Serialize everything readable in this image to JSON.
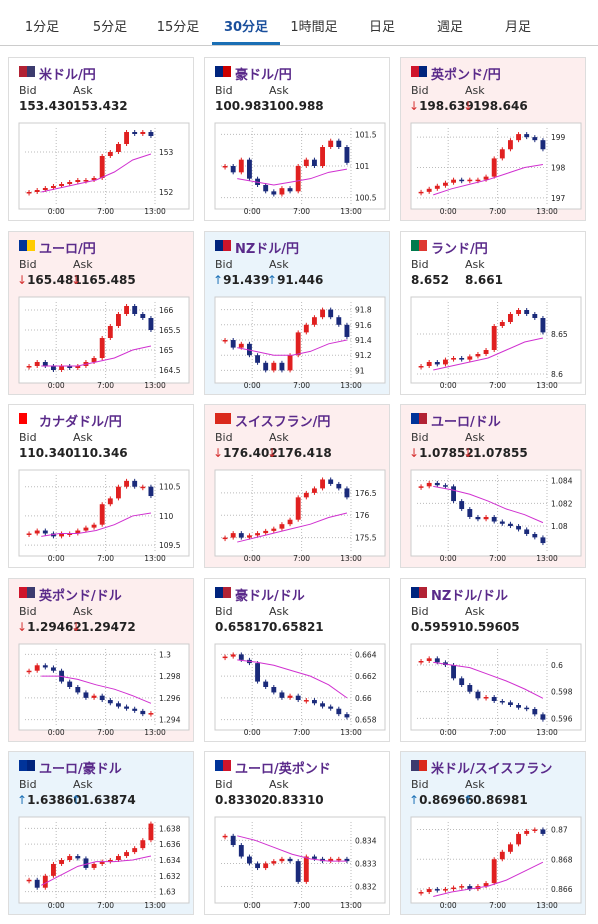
{
  "tabs": {
    "items": [
      "1分足",
      "5分足",
      "15分足",
      "30分足",
      "1時間足",
      "日足",
      "週足",
      "月足"
    ],
    "active": 3
  },
  "labels": {
    "bid": "Bid",
    "ask": "Ask"
  },
  "xticks": [
    "0:00",
    "7:00",
    "13:00"
  ],
  "colors": {
    "up_bg": "#eaf4fb",
    "down_bg": "#fdeeee",
    "up_arrow": "#1a6fb5",
    "down_arrow": "#d63030",
    "up_candle": "#e02020",
    "down_candle": "#1a2a7a",
    "ma": "#d030d0"
  },
  "panels": [
    {
      "name": "米ドル/円",
      "flag": [
        "#b22234",
        "#3c3b6e"
      ],
      "trend": "none",
      "bid": "153.430",
      "ask": "153.432",
      "ylim": [
        151.7,
        153.6
      ],
      "yticks": [
        152,
        153
      ],
      "closes": [
        152.0,
        152.05,
        152.1,
        152.15,
        152.2,
        152.25,
        152.3,
        152.3,
        152.35,
        152.9,
        153.0,
        153.2,
        153.5,
        153.45,
        153.5,
        153.4
      ],
      "ma": [
        152.0,
        152.1,
        152.2,
        152.3,
        152.5,
        152.8,
        152.95
      ]
    },
    {
      "name": "豪ドル/円",
      "flag": [
        "#00247d",
        "#cc0000"
      ],
      "trend": "none",
      "bid": "100.983",
      "ask": "100.988",
      "ylim": [
        100.4,
        101.6
      ],
      "yticks": [
        100.5,
        101,
        101.5
      ],
      "closes": [
        101.0,
        100.9,
        101.1,
        100.8,
        100.7,
        100.6,
        100.55,
        100.65,
        100.6,
        101.0,
        101.1,
        101.0,
        101.3,
        101.4,
        101.3,
        101.05
      ],
      "ma": [
        100.8,
        100.75,
        100.7,
        100.75,
        100.8,
        100.9,
        100.95
      ]
    },
    {
      "name": "英ポンド/円",
      "flag": [
        "#cf142b",
        "#00247d"
      ],
      "trend": "down",
      "arrow": "↓",
      "bid": "198.639",
      "ask": "198.646",
      "ylim": [
        196.8,
        199.3
      ],
      "yticks": [
        197,
        198,
        199
      ],
      "closes": [
        197.2,
        197.3,
        197.4,
        197.5,
        197.6,
        197.55,
        197.6,
        197.6,
        197.7,
        198.3,
        198.6,
        198.9,
        199.1,
        199.0,
        198.9,
        198.6
      ],
      "ma": [
        197.1,
        197.3,
        197.45,
        197.6,
        197.8,
        198.0,
        198.1
      ]
    },
    {
      "name": "ユーロ/円",
      "flag": [
        "#003399",
        "#ffcc00"
      ],
      "trend": "down",
      "arrow": "↓",
      "bid": "165.481",
      "ask": "165.485",
      "ylim": [
        164.3,
        166.2
      ],
      "yticks": [
        164.5,
        165,
        165.5,
        166
      ],
      "closes": [
        164.6,
        164.7,
        164.6,
        164.5,
        164.6,
        164.55,
        164.6,
        164.7,
        164.8,
        165.3,
        165.6,
        165.9,
        166.1,
        165.9,
        165.8,
        165.5
      ],
      "ma": [
        164.6,
        164.6,
        164.6,
        164.7,
        164.8,
        165.0,
        165.1
      ]
    },
    {
      "name": "NZドル/円",
      "flag": [
        "#00247d",
        "#cc142b"
      ],
      "trend": "up",
      "arrow": "↑",
      "bid": "91.439",
      "ask": "91.446",
      "ylim": [
        90.9,
        91.9
      ],
      "yticks": [
        91,
        91.2,
        91.4,
        91.6,
        91.8
      ],
      "closes": [
        91.4,
        91.3,
        91.35,
        91.2,
        91.1,
        91.0,
        91.1,
        91.0,
        91.2,
        91.5,
        91.6,
        91.7,
        91.8,
        91.7,
        91.6,
        91.44
      ],
      "ma": [
        91.3,
        91.25,
        91.2,
        91.2,
        91.25,
        91.35,
        91.4
      ]
    },
    {
      "name": "ランド/円",
      "flag": [
        "#007a4d",
        "#de3831"
      ],
      "trend": "none",
      "bid": "8.652",
      "ask": "8.661",
      "ylim": [
        8.595,
        8.69
      ],
      "yticks": [
        8.6,
        8.65
      ],
      "closes": [
        8.61,
        8.615,
        8.612,
        8.618,
        8.62,
        8.618,
        8.622,
        8.625,
        8.63,
        8.66,
        8.665,
        8.675,
        8.68,
        8.675,
        8.67,
        8.652
      ],
      "ma": [
        8.605,
        8.61,
        8.615,
        8.62,
        8.63,
        8.64,
        8.645
      ]
    },
    {
      "name": "カナダドル/円",
      "flag": [
        "#ff0000",
        "#ffffff"
      ],
      "trend": "none",
      "bid": "110.340",
      "ask": "110.346",
      "ylim": [
        109.4,
        110.7
      ],
      "yticks": [
        109.5,
        110,
        110.5
      ],
      "closes": [
        109.7,
        109.75,
        109.7,
        109.65,
        109.7,
        109.7,
        109.75,
        109.8,
        109.85,
        110.2,
        110.3,
        110.5,
        110.6,
        110.5,
        110.5,
        110.34
      ],
      "ma": [
        109.65,
        109.7,
        109.7,
        109.75,
        109.85,
        110.0,
        110.05
      ]
    },
    {
      "name": "スイスフラン/円",
      "flag": [
        "#da291c",
        "#da291c"
      ],
      "trend": "down",
      "arrow": "↓",
      "bid": "176.402",
      "ask": "176.418",
      "ylim": [
        175.2,
        176.9
      ],
      "yticks": [
        175.5,
        176,
        176.5
      ],
      "closes": [
        175.5,
        175.6,
        175.5,
        175.55,
        175.6,
        175.65,
        175.7,
        175.8,
        175.9,
        176.4,
        176.5,
        176.6,
        176.8,
        176.7,
        176.6,
        176.4
      ],
      "ma": [
        175.4,
        175.5,
        175.6,
        175.7,
        175.8,
        175.95,
        176.05
      ]
    },
    {
      "name": "ユーロ/ドル",
      "flag": [
        "#003399",
        "#b22234"
      ],
      "trend": "down",
      "arrow": "↓",
      "bid": "1.07852",
      "ask": "1.07855",
      "ylim": [
        1.0778,
        1.0845
      ],
      "yticks": [
        1.08,
        1.082,
        1.084
      ],
      "closes": [
        1.0835,
        1.0838,
        1.0836,
        1.0835,
        1.0822,
        1.0815,
        1.0808,
        1.0806,
        1.0808,
        1.0804,
        1.0802,
        1.08,
        1.0797,
        1.0793,
        1.079,
        1.0785
      ],
      "ma": [
        1.0835,
        1.0832,
        1.0828,
        1.0822,
        1.0815,
        1.081,
        1.0803
      ]
    },
    {
      "name": "英ポンド/ドル",
      "flag": [
        "#cf142b",
        "#3c3b6e"
      ],
      "trend": "down",
      "arrow": "↓",
      "bid": "1.29462",
      "ask": "1.29472",
      "ylim": [
        1.2935,
        1.3005
      ],
      "yticks": [
        1.294,
        1.296,
        1.298,
        1.3
      ],
      "closes": [
        1.2985,
        1.299,
        1.2988,
        1.2985,
        1.2975,
        1.297,
        1.2965,
        1.296,
        1.2962,
        1.2958,
        1.2955,
        1.2952,
        1.295,
        1.2948,
        1.2945,
        1.2946
      ],
      "ma": [
        1.298,
        1.298,
        1.2977,
        1.2972,
        1.2968,
        1.2962,
        1.2955
      ]
    },
    {
      "name": "豪ドル/ドル",
      "flag": [
        "#00247d",
        "#b22234"
      ],
      "trend": "none",
      "bid": "0.65817",
      "ask": "0.65821",
      "ylim": [
        0.6575,
        0.6645
      ],
      "yticks": [
        0.658,
        0.66,
        0.662,
        0.664
      ],
      "closes": [
        0.6638,
        0.664,
        0.6635,
        0.6632,
        0.6615,
        0.661,
        0.6605,
        0.66,
        0.6602,
        0.6598,
        0.6598,
        0.6595,
        0.6592,
        0.659,
        0.6585,
        0.6582
      ],
      "ma": [
        0.6635,
        0.6633,
        0.663,
        0.6625,
        0.662,
        0.6612,
        0.66
      ]
    },
    {
      "name": "NZドル/ドル",
      "flag": [
        "#00247d",
        "#b22234"
      ],
      "trend": "none",
      "bid": "0.59591",
      "ask": "0.59605",
      "ylim": [
        0.5955,
        0.6012
      ],
      "yticks": [
        0.596,
        0.598,
        0.6
      ],
      "closes": [
        0.6003,
        0.6005,
        0.6002,
        0.6,
        0.599,
        0.5985,
        0.598,
        0.5975,
        0.5976,
        0.5973,
        0.5972,
        0.597,
        0.5968,
        0.5967,
        0.5963,
        0.5959
      ],
      "ma": [
        0.6002,
        0.6,
        0.5998,
        0.5993,
        0.5988,
        0.5982,
        0.5975
      ]
    },
    {
      "name": "ユーロ/豪ドル",
      "flag": [
        "#003399",
        "#00247d"
      ],
      "trend": "up",
      "arrow": "↑",
      "bid": "1.63860",
      "ask": "1.63874",
      "ylim": [
        1.6292,
        1.6388
      ],
      "yticks": [
        1.63,
        1.632,
        1.634,
        1.636,
        1.638
      ],
      "closes": [
        1.6315,
        1.6305,
        1.632,
        1.6335,
        1.634,
        1.6345,
        1.6342,
        1.633,
        1.6335,
        1.6338,
        1.634,
        1.6345,
        1.635,
        1.6355,
        1.6365,
        1.6386
      ],
      "ma": [
        1.6308,
        1.632,
        1.6332,
        1.6338,
        1.6338,
        1.634,
        1.6345
      ]
    },
    {
      "name": "ユーロ/英ポンド",
      "flag": [
        "#003399",
        "#cf142b"
      ],
      "trend": "none",
      "bid": "0.83302",
      "ask": "0.83310",
      "ylim": [
        0.8315,
        0.8348
      ],
      "yticks": [
        0.832,
        0.833,
        0.834
      ],
      "closes": [
        0.8342,
        0.8338,
        0.8333,
        0.833,
        0.8328,
        0.833,
        0.8331,
        0.8332,
        0.8331,
        0.8322,
        0.8333,
        0.8332,
        0.8331,
        0.8332,
        0.8332,
        0.8331
      ],
      "ma": [
        0.8342,
        0.834,
        0.8337,
        0.8334,
        0.8332,
        0.8331,
        0.8331
      ]
    },
    {
      "name": "米ドル/スイスフラン",
      "flag": [
        "#3c3b6e",
        "#da291c"
      ],
      "trend": "up",
      "arrow": "↑",
      "bid": "0.86966",
      "ask": "0.86981",
      "ylim": [
        0.8654,
        0.8705
      ],
      "yticks": [
        0.866,
        0.868,
        0.87
      ],
      "closes": [
        0.8658,
        0.866,
        0.8659,
        0.866,
        0.8661,
        0.8662,
        0.866,
        0.8662,
        0.8664,
        0.868,
        0.8685,
        0.869,
        0.8697,
        0.8699,
        0.87,
        0.8697
      ],
      "ma": [
        0.8655,
        0.8658,
        0.866,
        0.8662,
        0.8666,
        0.8672,
        0.8678
      ]
    }
  ]
}
